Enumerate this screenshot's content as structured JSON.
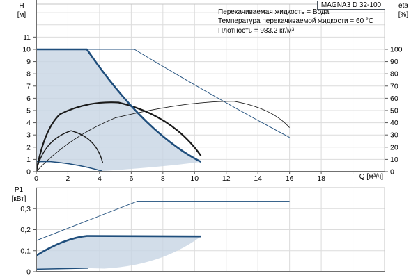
{
  "title_box": {
    "label": "MAGNA3 D 32-100"
  },
  "info": {
    "lines": [
      "Перекачиваемая жидкость = Вода",
      "Температура перекачиваемой жидкости = 60 °C",
      "Плотность = 983.2 кг/м³"
    ]
  },
  "axis_labels": {
    "h_name": "H",
    "h_unit": "[м]",
    "eta_name": "eta",
    "eta_unit": "[%]",
    "p1_name": "P1",
    "p1_unit": "[кВт]",
    "q_label": "Q [м³/ч]"
  },
  "colors": {
    "curve_blue": "#1f4e7c",
    "curve_black": "#1a1a1a",
    "fill_blue": "rgba(199,212,228,0.8)",
    "grid": "#dcdcdc",
    "frame": "#c4c4c4",
    "axis": "#707070",
    "tick": "#555555",
    "text": "#000000"
  },
  "chart_data": [
    {
      "type": "line",
      "name": "hq-chart",
      "title": "Head and efficiency vs flow",
      "xlabel": "Q [м³/ч]",
      "ylabel": "H [м]",
      "y2label": "eta [%]",
      "xlim": [
        0,
        22
      ],
      "ylim": [
        0,
        13.69
      ],
      "y2lim": [
        0,
        136.9
      ],
      "grid": true,
      "x_grid": [
        2,
        4,
        6,
        8,
        10,
        12,
        14,
        16,
        18,
        20
      ],
      "y_grid": [
        1,
        2,
        3,
        4,
        5,
        6,
        7,
        8,
        9,
        10,
        11,
        12,
        13
      ],
      "x_ticks": [
        [
          0,
          "0"
        ],
        [
          2,
          "2"
        ],
        [
          4,
          "4"
        ],
        [
          6,
          "6"
        ],
        [
          8,
          "8"
        ],
        [
          10,
          "10"
        ],
        [
          12,
          "12"
        ],
        [
          14,
          "14"
        ],
        [
          16,
          "16"
        ],
        [
          18,
          "18"
        ],
        [
          20,
          ""
        ]
      ],
      "y_ticks": [
        [
          0,
          "0"
        ],
        [
          1,
          "1"
        ],
        [
          2,
          "2"
        ],
        [
          3,
          "3"
        ],
        [
          4,
          "4"
        ],
        [
          5,
          "5"
        ],
        [
          6,
          "6"
        ],
        [
          7,
          "7"
        ],
        [
          8,
          "8"
        ],
        [
          9,
          "9"
        ],
        [
          10,
          "10"
        ],
        [
          11,
          "11"
        ]
      ],
      "y2_ticks": [
        [
          0,
          "0"
        ],
        [
          10,
          "10"
        ],
        [
          20,
          "20"
        ],
        [
          30,
          "30"
        ],
        [
          40,
          "40"
        ],
        [
          50,
          "50"
        ],
        [
          60,
          "60"
        ],
        [
          70,
          "70"
        ],
        [
          80,
          "80"
        ],
        [
          90,
          "90"
        ],
        [
          100,
          "100"
        ]
      ],
      "series": [
        {
          "name": "operating-envelope",
          "axis": "y",
          "style": "fill",
          "path": [
            [
              "M",
              0,
              10
            ],
            [
              "L",
              3.2,
              10
            ],
            [
              "Q",
              6.8,
              3.2,
              10.4,
              0.8
            ],
            [
              "Q",
              8.3,
              0.42,
              4.15,
              0.05
            ],
            [
              "Q",
              2.5,
              0.66,
              0.9,
              0.82
            ],
            [
              "L",
              0,
              0.82
            ],
            [
              "Z"
            ]
          ]
        },
        {
          "name": "eta-parallel-operation",
          "axis": "y2",
          "style": "thin-black",
          "path": [
            [
              "M",
              0,
              0
            ],
            [
              "Q",
              2,
              28,
              5,
              44
            ],
            [
              "Q",
              9.5,
              58,
              12.5,
              57.5
            ],
            [
              "Q",
              14.9,
              52,
              16,
              36
            ]
          ]
        },
        {
          "name": "head-parallel-operation",
          "axis": "y",
          "style": "thin-blue",
          "path": [
            [
              "M",
              3.2,
              10
            ],
            [
              "L",
              6.2,
              10
            ],
            [
              "Q",
              11.2,
              6.1,
              16,
              2.8
            ]
          ]
        },
        {
          "name": "eta-min-speed",
          "axis": "y2",
          "style": "med-black",
          "path": [
            [
              "M",
              0,
              0
            ],
            [
              "Q",
              0.45,
              26,
              2.2,
              33.4
            ],
            [
              "Q",
              3.8,
              28,
              4.2,
              7
            ]
          ]
        },
        {
          "name": "head-min-speed",
          "axis": "y",
          "style": "med-blue",
          "path": [
            [
              "M",
              0,
              0.82
            ],
            [
              "L",
              0.9,
              0.82
            ],
            [
              "Q",
              2.5,
              0.66,
              4.15,
              0.05
            ]
          ]
        },
        {
          "name": "eta-max-speed",
          "axis": "y2",
          "style": "thick-black",
          "path": [
            [
              "M",
              0,
              0
            ],
            [
              "Q",
              0.5,
              35,
              1.5,
              47
            ],
            [
              "Q",
              3.2,
              58,
              5.2,
              56.5
            ],
            [
              "Q",
              8.6,
              46,
              10.4,
              13
            ]
          ]
        },
        {
          "name": "head-max-speed",
          "axis": "y",
          "style": "thick-blue",
          "path": [
            [
              "M",
              0,
              10
            ],
            [
              "L",
              3.2,
              10
            ],
            [
              "Q",
              6.8,
              3.2,
              10.4,
              0.8
            ]
          ]
        }
      ]
    },
    {
      "type": "line",
      "name": "p1-chart",
      "title": "Power input vs flow",
      "xlabel": "Q [м³/ч]",
      "ylabel": "P1 [кВт]",
      "xlim": [
        0,
        22
      ],
      "ylim": [
        0,
        0.4
      ],
      "grid": true,
      "x_grid": [
        2,
        4,
        6,
        8,
        10,
        12,
        14,
        16,
        18,
        20
      ],
      "y_grid": [
        0.1,
        0.2,
        0.3
      ],
      "x_ticks": [],
      "y_ticks": [
        [
          0,
          "0"
        ],
        [
          0.1,
          "0,1"
        ],
        [
          0.2,
          "0,2"
        ],
        [
          0.3,
          "0,3"
        ]
      ],
      "series": [
        {
          "name": "p1-envelope",
          "axis": "y",
          "style": "fill",
          "path": [
            [
              "M",
              0,
              0.077
            ],
            [
              "Q",
              1.8,
              0.16,
              3.2,
              0.17
            ],
            [
              "L",
              10.4,
              0.168
            ],
            [
              "Q",
              7.9,
              0.03,
              4.3,
              0.015
            ],
            [
              "L",
              3.3,
              0.017
            ],
            [
              "L",
              0,
              0.012
            ],
            [
              "Z"
            ]
          ]
        },
        {
          "name": "p1-parallel-operation",
          "axis": "y",
          "style": "thin-blue",
          "path": [
            [
              "M",
              0,
              0.148
            ],
            [
              "L",
              6.4,
              0.336
            ],
            [
              "L",
              16,
              0.336
            ]
          ]
        },
        {
          "name": "p1-min-speed",
          "axis": "y",
          "style": "med-blue",
          "path": [
            [
              "M",
              0,
              0.012
            ],
            [
              "L",
              3.3,
              0.017
            ]
          ]
        },
        {
          "name": "p1-max-speed",
          "axis": "y",
          "style": "thick-blue",
          "path": [
            [
              "M",
              0,
              0.077
            ],
            [
              "Q",
              1.8,
              0.16,
              3.2,
              0.17
            ],
            [
              "L",
              10.4,
              0.168
            ]
          ]
        }
      ]
    }
  ]
}
